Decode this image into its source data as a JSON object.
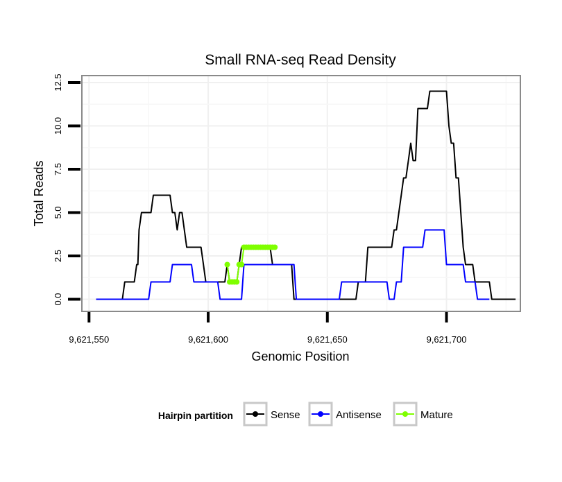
{
  "chart_data": {
    "type": "line",
    "title": "Small RNA-seq Read Density",
    "xlabel": "Genomic Position",
    "ylabel": "Total Reads",
    "xlim": [
      9621547,
      9621731
    ],
    "ylim": [
      -0.7,
      12.9
    ],
    "x_ticks": [
      9621550,
      9621600,
      9621650,
      9621700
    ],
    "x_tick_labels": [
      "9,621,550",
      "9,621,600",
      "9,621,650",
      "9,621,700"
    ],
    "y_ticks": [
      0,
      2.5,
      5,
      7.5,
      10,
      12.5
    ],
    "y_tick_labels": [
      "0.0",
      "2.5",
      "5.0",
      "7.5",
      "10.0",
      "12.5"
    ],
    "grid": true,
    "legend": {
      "title": "Hairpin partition",
      "position": "bottom",
      "entries": [
        "Sense",
        "Antisense",
        "Mature"
      ]
    },
    "series": [
      {
        "name": "Sense",
        "color": "#000000",
        "points": [
          [
            9621553,
            0
          ],
          [
            9621564,
            0
          ],
          [
            9621565,
            1
          ],
          [
            9621569,
            1
          ],
          [
            9621570,
            2
          ],
          [
            9621570.5,
            2
          ],
          [
            9621571,
            4
          ],
          [
            9621572,
            5
          ],
          [
            9621576,
            5
          ],
          [
            9621577,
            6
          ],
          [
            9621584,
            6
          ],
          [
            9621585,
            5
          ],
          [
            9621586,
            5
          ],
          [
            9621587,
            4
          ],
          [
            9621588,
            5
          ],
          [
            9621589,
            5
          ],
          [
            9621591,
            3
          ],
          [
            9621597,
            3
          ],
          [
            9621598,
            2
          ],
          [
            9621599,
            1
          ],
          [
            9621606,
            1
          ],
          [
            9621607,
            1
          ],
          [
            9621608,
            2
          ],
          [
            9621609,
            1
          ],
          [
            9621612,
            1
          ],
          [
            9621613,
            2
          ],
          [
            9621614,
            3
          ],
          [
            9621626,
            3
          ],
          [
            9621627,
            2
          ],
          [
            9621635,
            2
          ],
          [
            9621636,
            0
          ],
          [
            9621657,
            0
          ],
          [
            9621662,
            0
          ],
          [
            9621663,
            1
          ],
          [
            9621666,
            1
          ],
          [
            9621667,
            3
          ],
          [
            9621677,
            3
          ],
          [
            9621678,
            4
          ],
          [
            9621679,
            4
          ],
          [
            9621681,
            6
          ],
          [
            9621682,
            7
          ],
          [
            9621683,
            7
          ],
          [
            9621684,
            8
          ],
          [
            9621685,
            9
          ],
          [
            9621686,
            8
          ],
          [
            9621687,
            8
          ],
          [
            9621688,
            11
          ],
          [
            9621692,
            11
          ],
          [
            9621693,
            12
          ],
          [
            9621700,
            12
          ],
          [
            9621701,
            10
          ],
          [
            9621702,
            9
          ],
          [
            9621703,
            9
          ],
          [
            9621704,
            7
          ],
          [
            9621705,
            7
          ],
          [
            9621707,
            3
          ],
          [
            9621708,
            2
          ],
          [
            9621711,
            2
          ],
          [
            9621712,
            1
          ],
          [
            9621718,
            1
          ],
          [
            9621719,
            0
          ],
          [
            9621729,
            0
          ]
        ]
      },
      {
        "name": "Antisense",
        "color": "#0000ff",
        "points": [
          [
            9621553,
            0
          ],
          [
            9621575,
            0
          ],
          [
            9621576,
            1
          ],
          [
            9621584,
            1
          ],
          [
            9621585,
            2
          ],
          [
            9621593,
            2
          ],
          [
            9621594,
            1
          ],
          [
            9621604,
            1
          ],
          [
            9621605,
            0
          ],
          [
            9621614,
            0
          ],
          [
            9621615,
            2
          ],
          [
            9621636,
            2
          ],
          [
            9621637,
            0
          ],
          [
            9621655,
            0
          ],
          [
            9621656,
            1
          ],
          [
            9621675,
            1
          ],
          [
            9621676,
            0
          ],
          [
            9621678,
            0
          ],
          [
            9621679,
            1
          ],
          [
            9621681,
            1
          ],
          [
            9621682,
            3
          ],
          [
            9621690,
            3
          ],
          [
            9621691,
            4
          ],
          [
            9621699,
            4
          ],
          [
            9621700,
            2
          ],
          [
            9621707,
            2
          ],
          [
            9621708,
            1
          ],
          [
            9621712,
            1
          ],
          [
            9621713,
            0
          ],
          [
            9621718,
            0
          ]
        ]
      },
      {
        "name": "Mature",
        "color": "#7fff00",
        "points": [
          [
            9621608,
            2
          ],
          [
            9621609,
            1
          ],
          [
            9621610,
            1
          ],
          [
            9621611,
            1
          ],
          [
            9621612,
            1
          ],
          [
            9621613,
            2
          ],
          [
            9621614,
            2
          ],
          [
            9621615,
            3
          ],
          [
            9621616,
            3
          ],
          [
            9621617,
            3
          ],
          [
            9621618,
            3
          ],
          [
            9621619,
            3
          ],
          [
            9621620,
            3
          ],
          [
            9621621,
            3
          ],
          [
            9621622,
            3
          ],
          [
            9621623,
            3
          ],
          [
            9621624,
            3
          ],
          [
            9621625,
            3
          ],
          [
            9621626,
            3
          ],
          [
            9621627,
            3
          ],
          [
            9621628,
            3
          ]
        ]
      }
    ]
  }
}
